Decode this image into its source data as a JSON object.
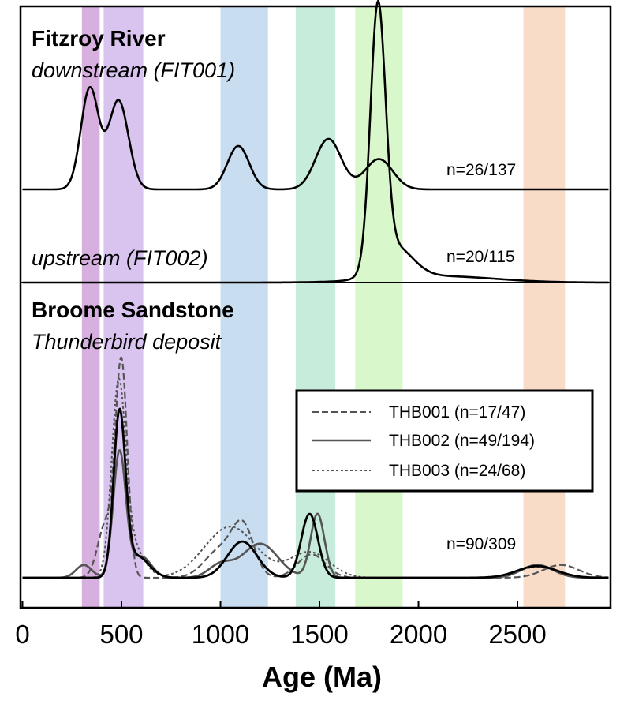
{
  "chart_data": {
    "type": "line",
    "xlabel": "Age (Ma)",
    "xlim": [
      -10,
      2970
    ],
    "x_ticks": [
      "0",
      "500",
      "1000",
      "1500",
      "2000",
      "2500"
    ],
    "x_tick_values": [
      0,
      500,
      1000,
      1500,
      2000,
      2500
    ],
    "highlight_bands": [
      {
        "from": 300,
        "to": 390,
        "color": "#d7b0e0"
      },
      {
        "from": 410,
        "to": 610,
        "color": "#d9c4f0"
      },
      {
        "from": 1000,
        "to": 1240,
        "color": "#c8def0"
      },
      {
        "from": 1380,
        "to": 1580,
        "color": "#c8ecdc"
      },
      {
        "from": 1680,
        "to": 1920,
        "color": "#d8f8cc"
      },
      {
        "from": 2530,
        "to": 2740,
        "color": "#f8dcc8"
      }
    ],
    "panels": [
      {
        "title": "Fitzroy River",
        "subtitle": "downstream (FIT001)",
        "count_label": "n=26/137",
        "series": [
          {
            "color": "#000000",
            "style": "solid",
            "peaks": [
              [
                340,
                1.0,
                45
              ],
              [
                485,
                0.88,
                50
              ],
              [
                1090,
                0.43,
                55
              ],
              [
                1545,
                0.5,
                65
              ],
              [
                1800,
                0.3,
                70
              ]
            ]
          }
        ]
      },
      {
        "title": "",
        "subtitle": "upstream (FIT002)",
        "count_label": "n=20/115",
        "series": [
          {
            "color": "#000000",
            "style": "solid",
            "peaks": [
              [
                1795,
                1.0,
                38
              ],
              [
                1880,
                0.12,
                90
              ],
              [
                2100,
                0.025,
                280
              ]
            ]
          }
        ]
      },
      {
        "title": "Broome Sandstone",
        "subtitle": "Thunderbird deposit",
        "count_label": "n=90/309",
        "series": [
          {
            "name": "THB001 (n=17/47)",
            "color": "#555555",
            "style": "dash",
            "peaks": [
              [
                500,
                1.0,
                30
              ],
              [
                420,
                0.25,
                40
              ],
              [
                1115,
                0.22,
                55
              ],
              [
                1000,
                0.13,
                80
              ],
              [
                1460,
                0.11,
                70
              ],
              [
                2720,
                0.06,
                90
              ]
            ]
          },
          {
            "name": "THB002 (n=49/194)",
            "color": "#555555",
            "style": "solid",
            "peaks": [
              [
                310,
                0.06,
                40
              ],
              [
                490,
                0.59,
                32
              ],
              [
                600,
                0.1,
                50
              ],
              [
                1200,
                0.16,
                90
              ],
              [
                1000,
                0.06,
                60
              ],
              [
                1490,
                0.3,
                35
              ],
              [
                2600,
                0.06,
                80
              ]
            ]
          },
          {
            "name": "THB003 (n=24/68)",
            "color": "#555555",
            "style": "dot",
            "peaks": [
              [
                485,
                0.85,
                35
              ],
              [
                550,
                0.15,
                60
              ],
              [
                1050,
                0.24,
                130
              ],
              [
                1450,
                0.12,
                100
              ],
              [
                2600,
                0.05,
                100
              ]
            ]
          },
          {
            "name": "",
            "color": "#000000",
            "style": "bold",
            "peaks": [
              [
                490,
                0.76,
                30
              ],
              [
                580,
                0.1,
                60
              ],
              [
                1110,
                0.17,
                75
              ],
              [
                1450,
                0.3,
                42
              ],
              [
                2600,
                0.055,
                100
              ]
            ]
          }
        ]
      }
    ]
  }
}
